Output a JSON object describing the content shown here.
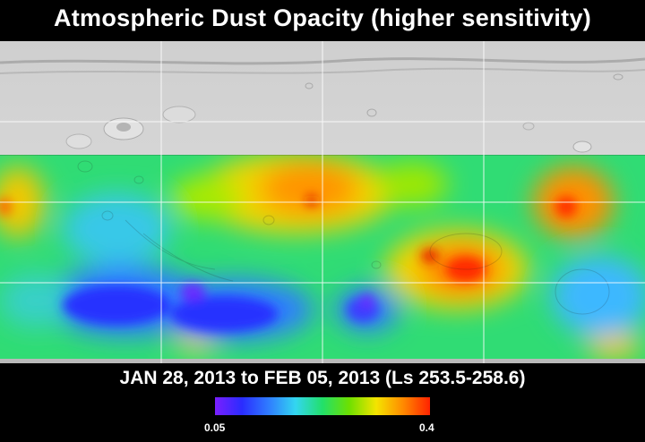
{
  "title": "Atmospheric Dust Opacity (higher sensitivity)",
  "subtitle": "JAN 28, 2013 to FEB 05, 2013 (Ls 253.5-258.6)",
  "colorbar": {
    "min_label": "0.05",
    "max_label": "0.4",
    "colors": [
      "#7a1fff",
      "#2a2cff",
      "#2f7dff",
      "#33d6f0",
      "#22e06a",
      "#6ee000",
      "#f4e400",
      "#ff8a00",
      "#ff2200"
    ]
  },
  "map": {
    "relief_color": "#c9c9c9",
    "gridline_color": "#ffffff"
  }
}
